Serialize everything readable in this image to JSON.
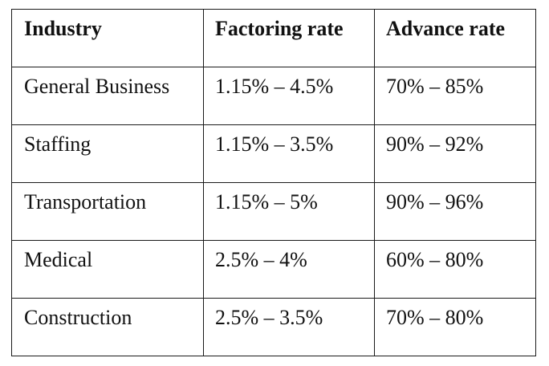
{
  "table": {
    "headers": [
      "Industry",
      "Factoring rate",
      "Advance rate"
    ],
    "rows": [
      [
        "General Business",
        "1.15% – 4.5%",
        "70% – 85%"
      ],
      [
        "Staffing",
        "1.15% – 3.5%",
        "90% – 92%"
      ],
      [
        "Transportation",
        "1.15% – 5%",
        "90% – 96%"
      ],
      [
        "Medical",
        "2.5% – 4%",
        "60% – 80%"
      ],
      [
        "Construction",
        "2.5% – 3.5%",
        "70% – 80%"
      ]
    ]
  }
}
